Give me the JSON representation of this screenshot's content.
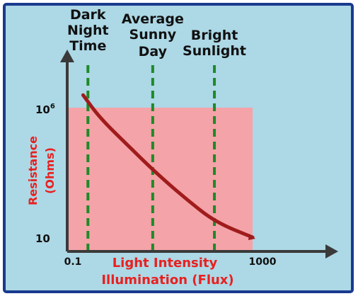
{
  "chart_data": {
    "type": "line",
    "x_scale": "log",
    "y_scale": "log",
    "xlabel_line1": "Light Intensity",
    "xlabel_line2": "Illumination (Flux)",
    "ylabel_line1": "Resistance",
    "ylabel_line2": "(Ohms)",
    "x_ticks": [
      {
        "label": "0.1",
        "value": 0.1
      },
      {
        "label": "1000",
        "value": 1000
      }
    ],
    "y_ticks": [
      {
        "label_base": "10",
        "label_exp": "6",
        "value": 1000000
      },
      {
        "label_base": "10",
        "label_exp": "",
        "value": 10
      }
    ],
    "xlim": [
      0.1,
      1000
    ],
    "ylim": [
      10,
      1000000
    ],
    "series": [
      {
        "points": [
          {
            "x": 0.22,
            "y": 3000000
          },
          {
            "x": 0.5,
            "y": 420000
          },
          {
            "x": 2,
            "y": 38000
          },
          {
            "x": 8,
            "y": 3500
          },
          {
            "x": 40,
            "y": 300
          },
          {
            "x": 160,
            "y": 45
          },
          {
            "x": 1000,
            "y": 12
          }
        ]
      }
    ],
    "shaded_region": {
      "x": [
        0.1,
        1000
      ],
      "y": [
        10,
        1000000
      ]
    },
    "reference_lines": [
      {
        "x": 0.28,
        "label_lines": [
          "Dark",
          "Night",
          "Time"
        ]
      },
      {
        "x": 7,
        "label_lines": [
          "Average",
          "Sunny",
          "Day"
        ]
      },
      {
        "x": 150,
        "label_lines": [
          "Bright",
          "Sunlight"
        ]
      }
    ],
    "colors": {
      "background": "#add8e6",
      "border": "#1a3a8f",
      "shaded_area": "#f4a3a8",
      "curve": "#a01c1c",
      "reference_line": "#1e8a28",
      "axis_label": "#e8201f",
      "axis": "#3a3a3a"
    },
    "grid": false,
    "legend": "none"
  }
}
